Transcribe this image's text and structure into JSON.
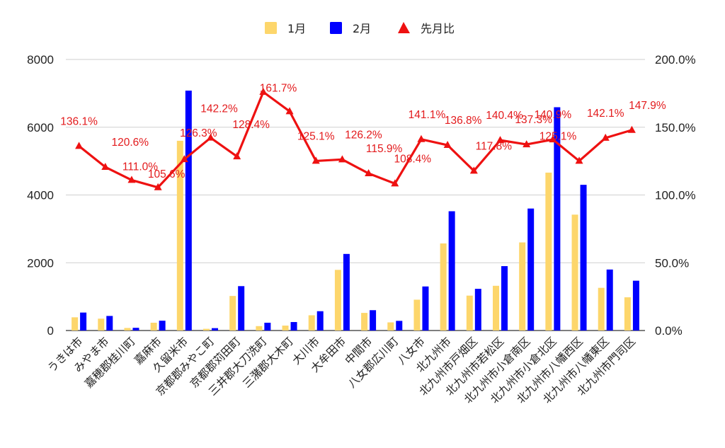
{
  "chart_data": {
    "type": "bar",
    "categories": [
      "うきは市",
      "みやま市",
      "嘉穂郡桂川町",
      "嘉麻市",
      "久留米市",
      "京都郡みやこ町",
      "京都郡苅田町",
      "三井郡大刀洗町",
      "三潴郡大木町",
      "大川市",
      "大牟田市",
      "中間市",
      "八女郡広川町",
      "八女市",
      "北九州市",
      "北九州市戸畑区",
      "北九州市若松区",
      "北九州市小倉南区",
      "北九州市小倉北区",
      "北九州市八幡西区",
      "北九州市八幡東区",
      "北九州市門司区"
    ],
    "series": [
      {
        "name": "1月",
        "kind": "bar",
        "axis": "left",
        "color": "#fdd66b",
        "values": [
          390,
          350,
          75,
          230,
          5600,
          50,
          1020,
          130,
          145,
          450,
          1790,
          520,
          240,
          910,
          2570,
          1030,
          1320,
          2600,
          4660,
          3420,
          1260,
          980
        ]
      },
      {
        "name": "2月",
        "kind": "bar",
        "axis": "left",
        "color": "#0000ff",
        "values": [
          530,
          430,
          80,
          290,
          7080,
          70,
          1310,
          230,
          250,
          570,
          2260,
          600,
          285,
          1300,
          3520,
          1230,
          1900,
          3600,
          6590,
          4300,
          1800,
          1470
        ]
      },
      {
        "name": "先月比",
        "kind": "line",
        "axis": "right",
        "color": "#ee1111",
        "values": [
          136.1,
          120.6,
          111.0,
          105.6,
          126.3,
          142.2,
          128.4,
          176.0,
          161.7,
          125.1,
          126.2,
          115.9,
          108.4,
          141.1,
          136.8,
          117.8,
          140.4,
          137.3,
          140.9,
          125.1,
          142.1,
          147.9
        ],
        "labels": [
          "136.1%",
          "120.6%",
          "111.0%",
          "105.6%",
          "126.3%",
          "142.2%",
          "128.4%",
          "",
          "161.7%",
          "125.1%",
          "126.2%",
          "115.9%",
          "108.4%",
          "141.1%",
          "136.8%",
          "117.8%",
          "140.4%",
          "137.3%",
          "140.9%",
          "125.1%",
          "142.1%",
          "147.9%"
        ]
      }
    ],
    "left_axis": {
      "min": 0,
      "max": 8000,
      "ticks": [
        "0",
        "2000",
        "4000",
        "6000",
        "8000"
      ],
      "tick_values": [
        0,
        2000,
        4000,
        6000,
        8000
      ]
    },
    "right_axis": {
      "min": 0,
      "max": 200,
      "ticks": [
        "0.0%",
        "50.0%",
        "100.0%",
        "150.0%",
        "200.0%"
      ],
      "tick_values": [
        0,
        50,
        100,
        150,
        200
      ]
    },
    "legend": {
      "position": "top",
      "items": [
        {
          "label": "1月",
          "marker": "square",
          "color": "#fdd66b"
        },
        {
          "label": "2月",
          "marker": "square",
          "color": "#0000ff"
        },
        {
          "label": "先月比",
          "marker": "triangle",
          "color": "#ee1111"
        }
      ]
    },
    "grid": true,
    "title": ""
  }
}
